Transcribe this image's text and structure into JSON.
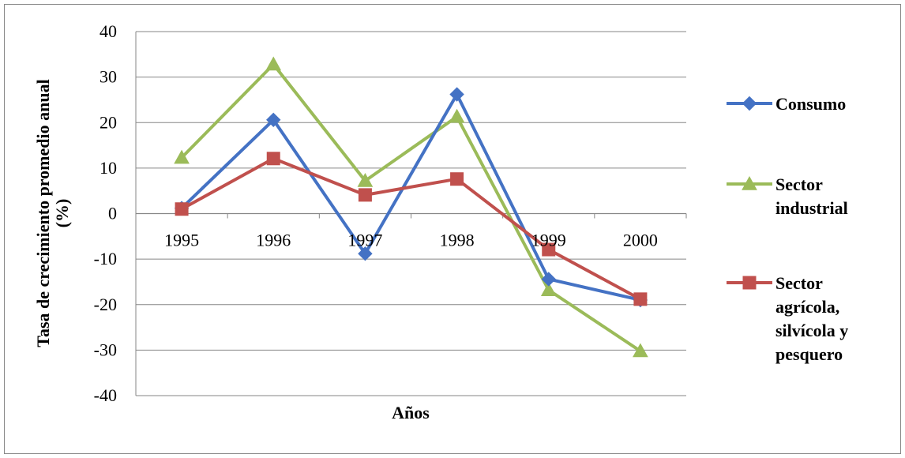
{
  "chart_data": {
    "type": "line",
    "title": "",
    "xlabel": "Años",
    "ylabel_line1": "Tasa de crecimiento promedio anual",
    "ylabel_line2": "(%)",
    "categories": [
      "1995",
      "1996",
      "1997",
      "1998",
      "1999",
      "2000"
    ],
    "ylim": [
      -40,
      40
    ],
    "yticks": [
      -40,
      -30,
      -20,
      -10,
      0,
      10,
      20,
      30,
      40
    ],
    "grid": true,
    "legend_position": "right",
    "series": [
      {
        "name_lines": [
          "Consumo"
        ],
        "color": "#4472C4",
        "marker": "diamond",
        "values": [
          1.2,
          20.6,
          -8.8,
          26.2,
          -14.4,
          -19.0
        ]
      },
      {
        "name_lines": [
          "Sector",
          "industrial"
        ],
        "color": "#9BBB59",
        "marker": "triangle",
        "values": [
          12.3,
          32.8,
          7.2,
          21.3,
          -16.8,
          -30.2
        ]
      },
      {
        "name_lines": [
          "Sector",
          "agrícola,",
          "silvícola y",
          "pesquero"
        ],
        "color": "#C0504D",
        "marker": "square",
        "values": [
          1.0,
          12.1,
          4.1,
          7.6,
          -7.9,
          -18.8
        ]
      }
    ]
  }
}
